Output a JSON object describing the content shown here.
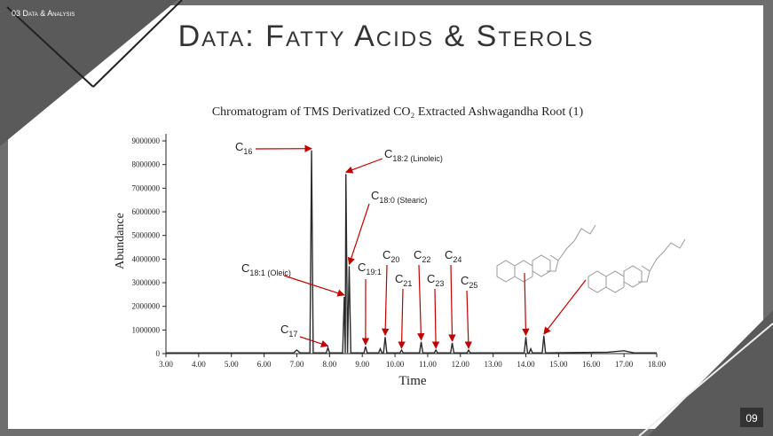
{
  "section": "03 Data & Analysis",
  "title": "Data: Fatty Acids & Sterols",
  "page_number": "09",
  "chart_data": {
    "type": "line",
    "title": "Chromatogram of TMS Derivatized CO₂ Extracted Ashwagandha Root (1)",
    "x_label": "Time",
    "y_label": "Abundance",
    "color": "#2b2b2b",
    "annotation_color": "#c00000",
    "xlim": [
      3,
      18
    ],
    "ylim": [
      0,
      9300000
    ],
    "xticks": [
      {
        "value": 3,
        "label": "3.00"
      },
      {
        "value": 4,
        "label": "4.00"
      },
      {
        "value": 5,
        "label": "5.00"
      },
      {
        "value": 6,
        "label": "6.00"
      },
      {
        "value": 7,
        "label": "7.00"
      },
      {
        "value": 8,
        "label": "8.00"
      },
      {
        "value": 9,
        "label": "9.00"
      },
      {
        "value": 10,
        "label": "10.00"
      },
      {
        "value": 11,
        "label": "11.00"
      },
      {
        "value": 12,
        "label": "12.00"
      },
      {
        "value": 13,
        "label": "13.00"
      },
      {
        "value": 14,
        "label": "14.00"
      },
      {
        "value": 15,
        "label": "15.00"
      },
      {
        "value": 16,
        "label": "16.00"
      },
      {
        "value": 17,
        "label": "17.00"
      },
      {
        "value": 18,
        "label": "18.00"
      }
    ],
    "yticks": [
      0,
      1000000,
      2000000,
      3000000,
      4000000,
      5000000,
      6000000,
      7000000,
      8000000,
      9000000
    ],
    "x": [
      3.0,
      6.9,
      7.0,
      7.1,
      7.4,
      7.45,
      7.5,
      7.9,
      7.95,
      8.0,
      8.4,
      8.45,
      8.48,
      8.5,
      8.55,
      8.6,
      8.65,
      9.05,
      9.1,
      9.15,
      9.5,
      9.55,
      9.6,
      9.65,
      9.7,
      9.75,
      10.15,
      10.2,
      10.25,
      10.75,
      10.8,
      10.85,
      11.2,
      11.25,
      11.3,
      11.7,
      11.75,
      11.8,
      12.2,
      12.25,
      12.3,
      13.95,
      14.0,
      14.05,
      14.1,
      14.15,
      14.2,
      14.5,
      14.55,
      14.6,
      16.5,
      17.0,
      17.3,
      18.0
    ],
    "values": [
      30000,
      30000,
      150000,
      30000,
      30000,
      8600000,
      30000,
      30000,
      250000,
      30000,
      30000,
      2400000,
      30000,
      7600000,
      30000,
      3700000,
      30000,
      30000,
      300000,
      30000,
      30000,
      200000,
      30000,
      30000,
      700000,
      30000,
      30000,
      150000,
      30000,
      30000,
      500000,
      30000,
      30000,
      150000,
      30000,
      30000,
      450000,
      30000,
      30000,
      150000,
      30000,
      30000,
      700000,
      30000,
      30000,
      200000,
      30000,
      30000,
      750000,
      30000,
      60000,
      120000,
      30000,
      30000
    ],
    "annotations": [
      {
        "text": "C",
        "sub": "16",
        "x": 7.45,
        "y": 8600000
      },
      {
        "text": "C",
        "sub": "18:2 (Linoleic)",
        "x": 8.5,
        "y": 7600000
      },
      {
        "text": "C",
        "sub": "18:0 (Stearic)",
        "x": 8.6,
        "y": 3700000
      },
      {
        "text": "C",
        "sub": "18:1 (Oleic)",
        "x": 8.45,
        "y": 2400000
      },
      {
        "text": "C",
        "sub": "17",
        "x": 7.95,
        "y": 250000
      },
      {
        "text": "C",
        "sub": "19:1",
        "x": 9.1,
        "y": 300000
      },
      {
        "text": "C",
        "sub": "20",
        "x": 9.7,
        "y": 700000
      },
      {
        "text": "C",
        "sub": "21",
        "x": 10.2,
        "y": 150000
      },
      {
        "text": "C",
        "sub": "22",
        "x": 10.8,
        "y": 500000
      },
      {
        "text": "C",
        "sub": "23",
        "x": 11.25,
        "y": 150000
      },
      {
        "text": "C",
        "sub": "24",
        "x": 11.75,
        "y": 450000
      },
      {
        "text": "C",
        "sub": "25",
        "x": 12.25,
        "y": 150000
      }
    ],
    "sterol_arrows": [
      {
        "x": 14.0,
        "y": 700000
      },
      {
        "x": 14.55,
        "y": 750000
      }
    ]
  }
}
